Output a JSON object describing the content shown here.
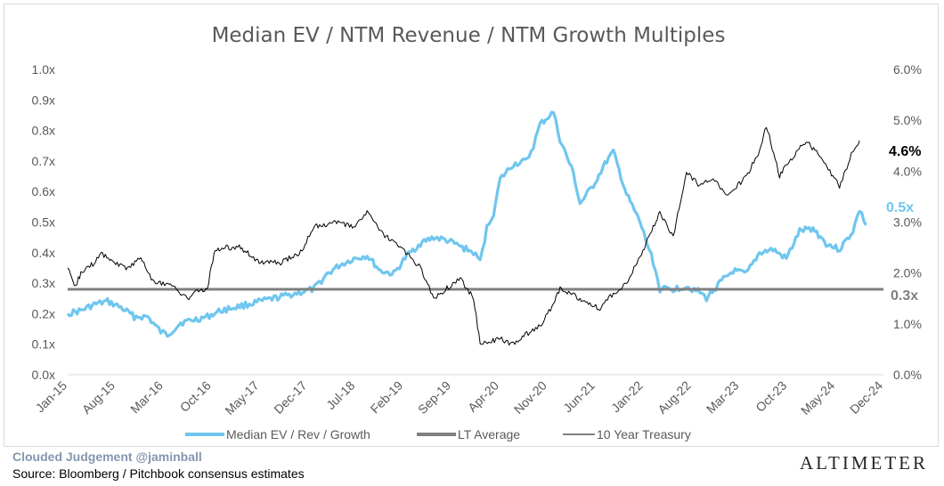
{
  "chart_data": {
    "type": "line",
    "title": "Median EV / NTM Revenue / NTM Growth Multiples",
    "x_tick_labels": [
      "Jan-15",
      "Aug-15",
      "Mar-16",
      "Oct-16",
      "May-17",
      "Dec-17",
      "Jul-18",
      "Feb-19",
      "Sep-19",
      "Apr-20",
      "Nov-20",
      "Jun-21",
      "Jan-22",
      "Aug-22",
      "Mar-23",
      "Oct-23",
      "May-24",
      "Dec-24"
    ],
    "y_left": {
      "ticks": [
        "0.0x",
        "0.1x",
        "0.2x",
        "0.3x",
        "0.4x",
        "0.5x",
        "0.6x",
        "0.7x",
        "0.8x",
        "0.9x",
        "1.0x"
      ],
      "ylim": [
        0,
        1.0
      ]
    },
    "y_right": {
      "ticks": [
        "0.0%",
        "1.0%",
        "2.0%",
        "3.0%",
        "4.0%",
        "5.0%",
        "6.0%"
      ],
      "ylim": [
        0,
        6.0
      ]
    },
    "grid": false,
    "legend_position": "bottom",
    "series": [
      {
        "name": "Median EV / Rev / Growth",
        "axis": "left",
        "color": "#6fc6ee",
        "end_label": "0.5x",
        "points": [
          [
            "2015-01",
            0.2
          ],
          [
            "2015-03",
            0.21
          ],
          [
            "2015-05",
            0.23
          ],
          [
            "2015-07",
            0.24
          ],
          [
            "2015-09",
            0.22
          ],
          [
            "2015-11",
            0.19
          ],
          [
            "2016-01",
            0.19
          ],
          [
            "2016-03",
            0.14
          ],
          [
            "2016-04",
            0.13
          ],
          [
            "2016-06",
            0.17
          ],
          [
            "2016-08",
            0.18
          ],
          [
            "2016-10",
            0.19
          ],
          [
            "2016-12",
            0.21
          ],
          [
            "2017-02",
            0.22
          ],
          [
            "2017-04",
            0.23
          ],
          [
            "2017-06",
            0.24
          ],
          [
            "2017-08",
            0.25
          ],
          [
            "2017-10",
            0.26
          ],
          [
            "2017-12",
            0.27
          ],
          [
            "2018-02",
            0.28
          ],
          [
            "2018-04",
            0.33
          ],
          [
            "2018-06",
            0.36
          ],
          [
            "2018-08",
            0.38
          ],
          [
            "2018-10",
            0.39
          ],
          [
            "2018-12",
            0.34
          ],
          [
            "2019-02",
            0.33
          ],
          [
            "2019-04",
            0.39
          ],
          [
            "2019-06",
            0.43
          ],
          [
            "2019-08",
            0.45
          ],
          [
            "2019-10",
            0.44
          ],
          [
            "2019-12",
            0.42
          ],
          [
            "2020-02",
            0.4
          ],
          [
            "2020-03",
            0.37
          ],
          [
            "2020-04",
            0.48
          ],
          [
            "2020-05",
            0.53
          ],
          [
            "2020-06",
            0.64
          ],
          [
            "2020-08",
            0.69
          ],
          [
            "2020-10",
            0.7
          ],
          [
            "2020-11",
            0.75
          ],
          [
            "2020-12",
            0.82
          ],
          [
            "2021-02",
            0.86
          ],
          [
            "2021-03",
            0.77
          ],
          [
            "2021-05",
            0.66
          ],
          [
            "2021-06",
            0.56
          ],
          [
            "2021-08",
            0.62
          ],
          [
            "2021-10",
            0.7
          ],
          [
            "2021-11",
            0.73
          ],
          [
            "2022-01",
            0.59
          ],
          [
            "2022-03",
            0.5
          ],
          [
            "2022-05",
            0.37
          ],
          [
            "2022-06",
            0.28
          ],
          [
            "2022-08",
            0.28
          ],
          [
            "2022-10",
            0.29
          ],
          [
            "2022-12",
            0.27
          ],
          [
            "2023-01",
            0.25
          ],
          [
            "2023-03",
            0.3
          ],
          [
            "2023-05",
            0.34
          ],
          [
            "2023-07",
            0.33
          ],
          [
            "2023-09",
            0.4
          ],
          [
            "2023-11",
            0.41
          ],
          [
            "2024-01",
            0.38
          ],
          [
            "2024-03",
            0.47
          ],
          [
            "2024-05",
            0.48
          ],
          [
            "2024-07",
            0.43
          ],
          [
            "2024-09",
            0.41
          ],
          [
            "2024-11",
            0.47
          ],
          [
            "2024-12",
            0.54
          ],
          [
            "2025-01",
            0.49
          ]
        ]
      },
      {
        "name": "LT Average",
        "axis": "left",
        "color": "#7f7f7f",
        "end_label": "0.3x",
        "value": 0.28
      },
      {
        "name": "10 Year Treasury",
        "axis": "right",
        "color": "#000000",
        "end_label": "4.6%",
        "points": [
          [
            "2015-01",
            2.1
          ],
          [
            "2015-02",
            1.7
          ],
          [
            "2015-03",
            2.0
          ],
          [
            "2015-05",
            2.2
          ],
          [
            "2015-06",
            2.4
          ],
          [
            "2015-08",
            2.2
          ],
          [
            "2015-10",
            2.1
          ],
          [
            "2015-12",
            2.3
          ],
          [
            "2016-02",
            1.8
          ],
          [
            "2016-04",
            1.8
          ],
          [
            "2016-06",
            1.6
          ],
          [
            "2016-07",
            1.5
          ],
          [
            "2016-08",
            1.6
          ],
          [
            "2016-10",
            1.7
          ],
          [
            "2016-11",
            2.4
          ],
          [
            "2016-12",
            2.5
          ],
          [
            "2017-03",
            2.5
          ],
          [
            "2017-06",
            2.2
          ],
          [
            "2017-09",
            2.2
          ],
          [
            "2017-12",
            2.4
          ],
          [
            "2018-02",
            2.9
          ],
          [
            "2018-05",
            3.0
          ],
          [
            "2018-08",
            2.9
          ],
          [
            "2018-10",
            3.2
          ],
          [
            "2018-12",
            2.8
          ],
          [
            "2019-03",
            2.5
          ],
          [
            "2019-06",
            2.1
          ],
          [
            "2019-08",
            1.5
          ],
          [
            "2019-10",
            1.7
          ],
          [
            "2019-12",
            1.9
          ],
          [
            "2020-02",
            1.5
          ],
          [
            "2020-03",
            0.6
          ],
          [
            "2020-06",
            0.7
          ],
          [
            "2020-08",
            0.6
          ],
          [
            "2020-10",
            0.8
          ],
          [
            "2020-12",
            0.95
          ],
          [
            "2021-02",
            1.4
          ],
          [
            "2021-03",
            1.7
          ],
          [
            "2021-06",
            1.5
          ],
          [
            "2021-09",
            1.3
          ],
          [
            "2021-11",
            1.6
          ],
          [
            "2022-01",
            1.8
          ],
          [
            "2022-03",
            2.3
          ],
          [
            "2022-05",
            2.9
          ],
          [
            "2022-06",
            3.2
          ],
          [
            "2022-08",
            2.7
          ],
          [
            "2022-10",
            4.0
          ],
          [
            "2022-12",
            3.7
          ],
          [
            "2023-02",
            3.9
          ],
          [
            "2023-04",
            3.5
          ],
          [
            "2023-07",
            3.9
          ],
          [
            "2023-09",
            4.4
          ],
          [
            "2023-10",
            4.9
          ],
          [
            "2023-12",
            3.9
          ],
          [
            "2024-01",
            4.1
          ],
          [
            "2024-04",
            4.6
          ],
          [
            "2024-06",
            4.3
          ],
          [
            "2024-08",
            3.9
          ],
          [
            "2024-09",
            3.7
          ],
          [
            "2024-11",
            4.4
          ],
          [
            "2024-12",
            4.6
          ]
        ]
      }
    ]
  },
  "footer": {
    "credit": "Clouded Judgement @jaminball",
    "source": "Source: Bloomberg / Pitchbook consensus estimates",
    "logo": "ALTIMETER"
  }
}
